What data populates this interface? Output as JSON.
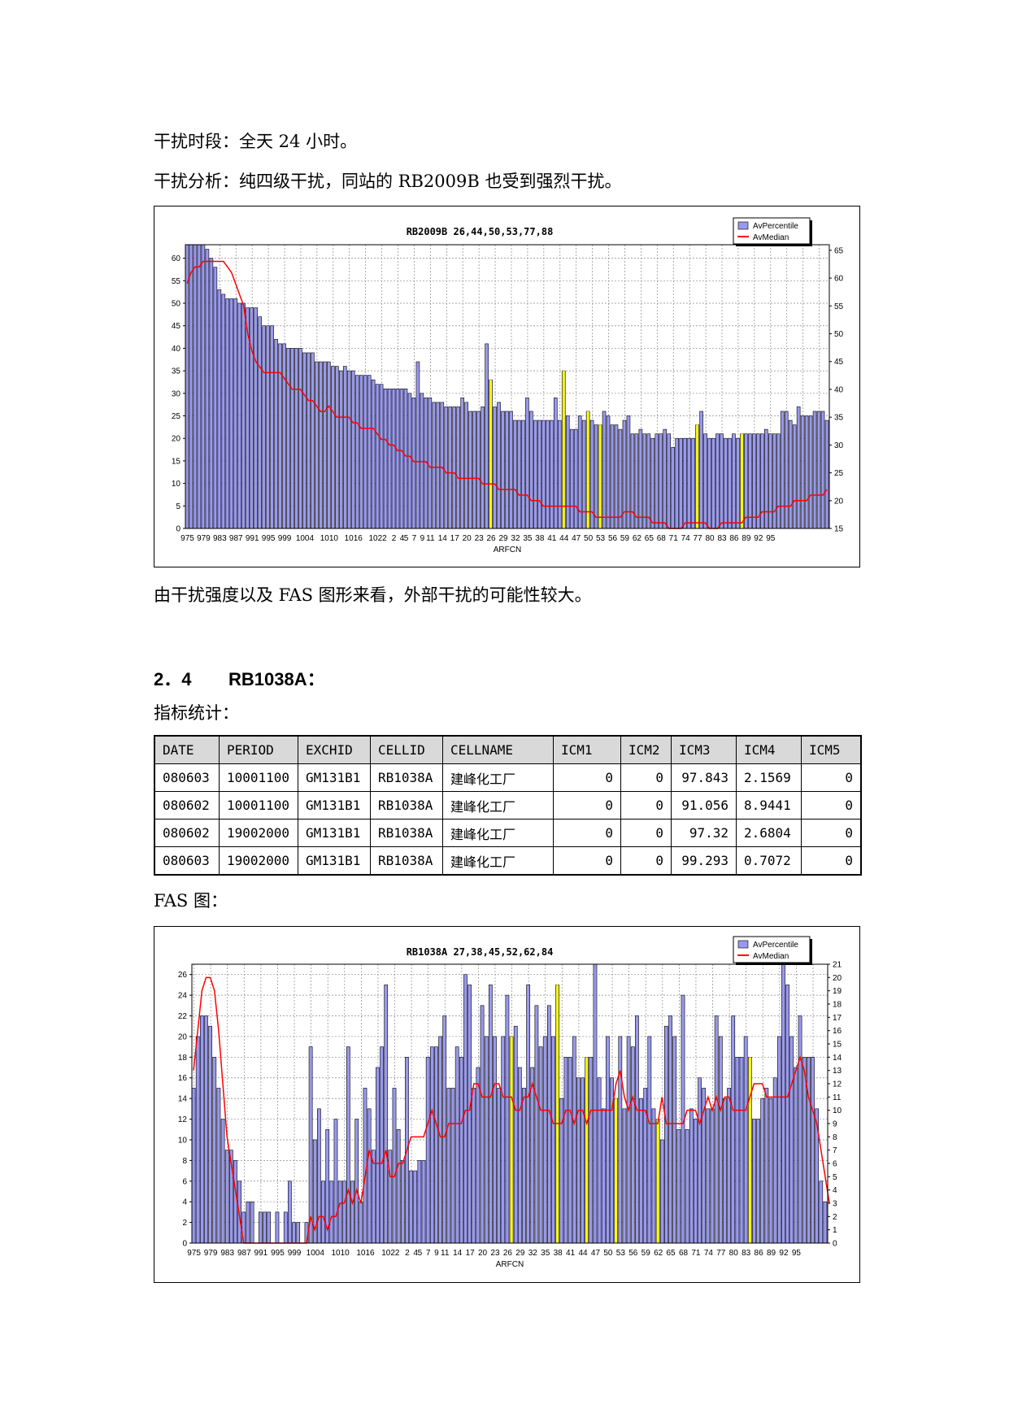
{
  "page": {
    "text_time": "干扰时段：全天 24 小时。",
    "text_analysis": "干扰分析：纯四级干扰，同站的 RB2009B 也受到强烈干扰。",
    "text_conclusion": "由干扰强度以及 FAS 图形来看，外部干扰的可能性较大。",
    "section_number": "2．4",
    "section_title": "RB1038A：",
    "stats_label": "指标统计：",
    "fas_label": "FAS 图："
  },
  "table": {
    "headers": [
      "DATE",
      "PERIOD",
      "EXCHID",
      "CELLID",
      "CELLNAME",
      "ICM1",
      "ICM2",
      "ICM3",
      "ICM4",
      "ICM5"
    ],
    "rows": [
      [
        "080603",
        "10001100",
        "GM131B1",
        "RB1038A",
        "建峰化工厂",
        "0",
        "0",
        "97.843",
        "2.1569",
        "0"
      ],
      [
        "080602",
        "10001100",
        "GM131B1",
        "RB1038A",
        "建峰化工厂",
        "0",
        "0",
        "91.056",
        "8.9441",
        "0"
      ],
      [
        "080602",
        "19002000",
        "GM131B1",
        "RB1038A",
        "建峰化工厂",
        "0",
        "0",
        "97.32",
        "2.6804",
        "0"
      ],
      [
        "080603",
        "19002000",
        "GM131B1",
        "RB1038A",
        "建峰化工厂",
        "0",
        "0",
        "99.293",
        "0.7072",
        "0"
      ]
    ]
  },
  "colors": {
    "bar": "#9999ee",
    "bar_highlight": "#ffff00",
    "line": "#ff0000",
    "grid": "#888888"
  },
  "chart_data": [
    {
      "type": "bar",
      "title": "RB2009B 26,44,50,53,77,88",
      "xlabel": "ARFCN",
      "legend": [
        "AvPercentile",
        "AvMedian"
      ],
      "legend_position": "top-right",
      "grid": true,
      "ylim": [
        0,
        63
      ],
      "y2lim": [
        15,
        66
      ],
      "yticks": [
        0,
        5,
        10,
        15,
        20,
        25,
        30,
        35,
        40,
        45,
        50,
        55,
        60
      ],
      "y2ticks": [
        15,
        20,
        25,
        30,
        35,
        40,
        45,
        50,
        55,
        60,
        65
      ],
      "xtick_labels": [
        "975",
        "979",
        "983",
        "987",
        "991",
        "995",
        "999",
        "1004",
        "1010",
        "1016",
        "1022",
        "2",
        "4",
        "5",
        "7",
        "9",
        "11",
        "14",
        "17",
        "20",
        "23",
        "26",
        "29",
        "32",
        "35",
        "38",
        "41",
        "44",
        "47",
        "50",
        "53",
        "56",
        "59",
        "62",
        "65",
        "68",
        "71",
        "74",
        "77",
        "80",
        "83",
        "86",
        "89",
        "92",
        "95"
      ],
      "highlighted_channels": [
        26,
        44,
        50,
        53,
        77,
        88
      ],
      "series": [
        {
          "name": "AvPercentile",
          "values": [
            63,
            63,
            63,
            63,
            63,
            62,
            60,
            58,
            53,
            52,
            51,
            51,
            51,
            50,
            50,
            49,
            49,
            49,
            47,
            45,
            45,
            45,
            42,
            41,
            41,
            40,
            40,
            40,
            40,
            39,
            39,
            39,
            37,
            37,
            37,
            37,
            36,
            36,
            35,
            36,
            35,
            35,
            34,
            34,
            34,
            34,
            33,
            32,
            32,
            31,
            31,
            31,
            31,
            31,
            31,
            30,
            29,
            37,
            30,
            29,
            29,
            28,
            28,
            28,
            27,
            27,
            27,
            27,
            29,
            28,
            26,
            26,
            26,
            27,
            41,
            33,
            27,
            28,
            26,
            26,
            26,
            24,
            24,
            24,
            29,
            26,
            24,
            24,
            24,
            24,
            24,
            29,
            24,
            35,
            25,
            22,
            22,
            25,
            24,
            26,
            24,
            23,
            23,
            26,
            25,
            23,
            23,
            22,
            24,
            25,
            21,
            21,
            22,
            21,
            21,
            20,
            21,
            21,
            22,
            21,
            18,
            20,
            20,
            20,
            20,
            20,
            23,
            26,
            21,
            20,
            20,
            21,
            21,
            20,
            20,
            21,
            20,
            21,
            21,
            21,
            21,
            21,
            21,
            22,
            21,
            21,
            21,
            26,
            26,
            24,
            23,
            27,
            25,
            25,
            25,
            26,
            26,
            26,
            24
          ]
        },
        {
          "name": "AvMedian",
          "values": [
            59,
            61,
            62,
            62,
            63,
            63,
            63,
            63,
            63,
            63,
            62,
            61,
            59,
            57,
            55,
            50,
            47,
            45,
            44,
            43,
            43,
            43,
            43,
            43,
            42,
            41,
            40,
            40,
            40,
            39,
            38,
            38,
            37,
            36,
            36,
            37,
            36,
            35,
            35,
            35,
            35,
            34,
            34,
            33,
            33,
            33,
            33,
            32,
            31,
            31,
            30,
            30,
            29,
            29,
            28,
            28,
            27,
            27,
            27,
            27,
            26,
            26,
            26,
            26,
            25,
            25,
            25,
            24,
            24,
            24,
            24,
            24,
            24,
            23,
            23,
            23,
            23,
            22,
            22,
            22,
            22,
            22,
            21,
            21,
            21,
            20,
            20,
            20,
            19,
            19,
            19,
            19,
            19,
            19,
            19,
            19,
            19,
            18,
            18,
            18,
            18,
            17,
            17,
            17,
            17,
            17,
            17,
            17,
            18,
            18,
            18,
            17,
            17,
            17,
            17,
            16,
            16,
            16,
            16,
            15,
            15,
            15,
            15,
            16,
            16,
            16,
            16,
            16,
            16,
            15,
            15,
            15,
            16,
            16,
            16,
            16,
            16,
            16,
            17,
            17,
            17,
            17,
            18,
            18,
            18,
            18,
            19,
            19,
            19,
            19,
            20,
            20,
            20,
            20,
            21,
            21,
            21,
            21,
            22
          ]
        }
      ]
    },
    {
      "type": "bar",
      "title": "RB1038A 27,38,45,52,62,84",
      "xlabel": "ARFCN",
      "legend": [
        "AvPercentile",
        "AvMedian"
      ],
      "legend_position": "top-right",
      "grid": true,
      "ylim": [
        0,
        27
      ],
      "y2lim": [
        0,
        21
      ],
      "yticks": [
        0,
        2,
        4,
        6,
        8,
        10,
        12,
        14,
        16,
        18,
        20,
        22,
        24,
        26
      ],
      "y2ticks": [
        0,
        1,
        2,
        3,
        4,
        5,
        6,
        7,
        8,
        9,
        10,
        11,
        12,
        13,
        14,
        15,
        16,
        17,
        18,
        19,
        20,
        21
      ],
      "xtick_labels": [
        "975",
        "979",
        "983",
        "987",
        "991",
        "995",
        "999",
        "1004",
        "1010",
        "1016",
        "1022",
        "2",
        "4",
        "5",
        "7",
        "9",
        "11",
        "14",
        "17",
        "20",
        "23",
        "26",
        "29",
        "32",
        "35",
        "38",
        "41",
        "44",
        "47",
        "50",
        "53",
        "56",
        "59",
        "62",
        "65",
        "68",
        "71",
        "74",
        "77",
        "80",
        "83",
        "86",
        "89",
        "92",
        "95"
      ],
      "highlighted_channels": [
        27,
        38,
        45,
        52,
        62,
        84
      ],
      "series": [
        {
          "name": "AvPercentile",
          "values": [
            15,
            20,
            22,
            22,
            21,
            18,
            15,
            12,
            9,
            9,
            8,
            6,
            3,
            4,
            4,
            0,
            3,
            3,
            3,
            0,
            3,
            0,
            3,
            6,
            2,
            2,
            0,
            2,
            19,
            10,
            13,
            6,
            11,
            6,
            12,
            6,
            6,
            19,
            6,
            12,
            4,
            15,
            13,
            9,
            17,
            19,
            25,
            9,
            15,
            11,
            8,
            18,
            7,
            7,
            8,
            8,
            18,
            19,
            19,
            20,
            22,
            15,
            15,
            19,
            18,
            26,
            25,
            15,
            17,
            23,
            20,
            25,
            20,
            15,
            20,
            24,
            20,
            21,
            17,
            15,
            25,
            17,
            23,
            19,
            20,
            23,
            20,
            25,
            14,
            18,
            18,
            20,
            16,
            16,
            18,
            18,
            27,
            16,
            13,
            20,
            16,
            14,
            20,
            13,
            20,
            19,
            22,
            14,
            15,
            20,
            13,
            12,
            10,
            21,
            22,
            20,
            11,
            24,
            11,
            13,
            12,
            16,
            15,
            13,
            13,
            22,
            20,
            14,
            15,
            22,
            18,
            18,
            20,
            18,
            12,
            12,
            14,
            15,
            14,
            16,
            20,
            27,
            25,
            20,
            17,
            22,
            18,
            18,
            18,
            13,
            6,
            4
          ]
        },
        {
          "name": "AvMedian",
          "values": [
            13,
            16,
            19,
            20,
            20,
            19,
            16,
            12,
            8,
            6,
            4,
            2,
            0,
            0,
            0,
            0,
            0,
            0,
            0,
            0,
            0,
            0,
            0,
            0,
            0,
            0,
            0,
            0,
            2,
            1,
            2,
            2,
            1,
            2,
            2,
            3,
            3,
            4,
            3,
            4,
            3,
            5,
            7,
            6,
            6,
            6,
            7,
            5,
            5,
            6,
            6,
            7,
            8,
            8,
            8,
            8,
            9,
            10,
            9,
            8,
            8,
            9,
            9,
            9,
            9,
            10,
            10,
            12,
            12,
            11,
            11,
            11,
            12,
            12,
            11,
            11,
            11,
            10,
            10,
            11,
            11,
            12,
            11,
            10,
            10,
            10,
            9,
            9,
            9,
            10,
            10,
            9,
            10,
            10,
            9,
            10,
            10,
            10,
            10,
            10,
            10,
            12,
            13,
            11,
            10,
            11,
            10,
            10,
            10,
            9,
            9,
            9,
            11,
            9,
            9,
            9,
            9,
            9,
            10,
            10,
            10,
            9,
            10,
            11,
            10,
            11,
            10,
            11,
            11,
            10,
            10,
            10,
            10,
            11,
            12,
            12,
            12,
            11,
            11,
            11,
            11,
            11,
            11,
            12,
            13,
            14,
            13,
            11,
            10,
            9,
            7,
            5,
            3
          ]
        }
      ]
    }
  ]
}
